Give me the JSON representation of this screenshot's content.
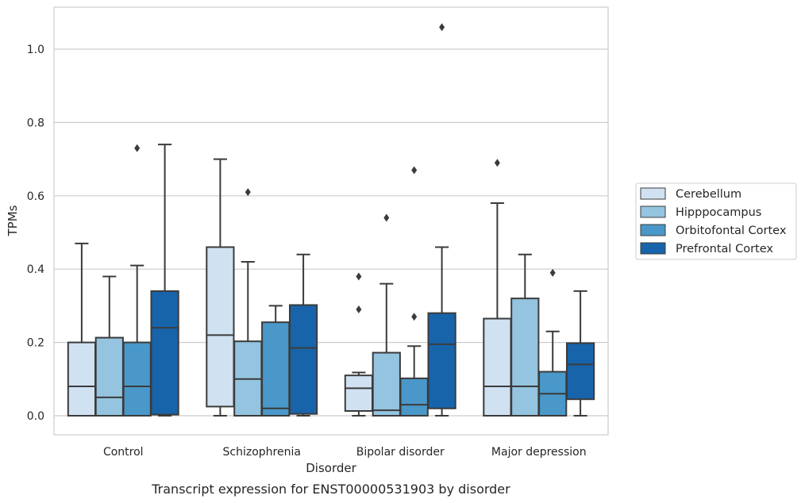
{
  "caption": "Transcript expression for ENST00000531903 by disorder",
  "chart_data": {
    "type": "boxplot",
    "xlabel": "Disorder",
    "ylabel": "TPMs",
    "ylim": [
      -0.05,
      1.115
    ],
    "yticks": [
      0.0,
      0.2,
      0.4,
      0.6,
      0.8,
      1.0
    ],
    "ytick_labels": [
      "0.0",
      "0.2",
      "0.4",
      "0.6",
      "0.8",
      "1.0"
    ],
    "grid": true,
    "legend_position": "right",
    "categories": [
      "Control",
      "Schizophrenia",
      "Bipolar disorder",
      "Major depression"
    ],
    "series": [
      {
        "name": "Cerebellum",
        "color": "#d0e1f2",
        "boxes": [
          {
            "whislo": 0.0,
            "q1": 0.0,
            "med": 0.08,
            "q3": 0.2,
            "whishi": 0.47,
            "fliers": []
          },
          {
            "whislo": 0.0,
            "q1": 0.025,
            "med": 0.22,
            "q3": 0.46,
            "whishi": 0.7,
            "fliers": []
          },
          {
            "whislo": 0.0,
            "q1": 0.013,
            "med": 0.075,
            "q3": 0.11,
            "whishi": 0.118,
            "fliers": [
              0.29,
              0.38
            ]
          },
          {
            "whislo": 0.0,
            "q1": 0.0,
            "med": 0.08,
            "q3": 0.265,
            "whishi": 0.58,
            "fliers": [
              0.69
            ]
          }
        ]
      },
      {
        "name": "Hipppocampus",
        "color": "#94c4df",
        "boxes": [
          {
            "whislo": 0.0,
            "q1": 0.0,
            "med": 0.05,
            "q3": 0.213,
            "whishi": 0.38,
            "fliers": []
          },
          {
            "whislo": 0.0,
            "q1": 0.0,
            "med": 0.1,
            "q3": 0.203,
            "whishi": 0.42,
            "fliers": [
              0.61
            ]
          },
          {
            "whislo": 0.0,
            "q1": 0.0,
            "med": 0.015,
            "q3": 0.172,
            "whishi": 0.36,
            "fliers": [
              0.54
            ]
          },
          {
            "whislo": 0.0,
            "q1": 0.0,
            "med": 0.08,
            "q3": 0.32,
            "whishi": 0.44,
            "fliers": []
          }
        ]
      },
      {
        "name": "Orbitofontal Cortex",
        "color": "#4a98c9",
        "boxes": [
          {
            "whislo": 0.0,
            "q1": 0.0,
            "med": 0.08,
            "q3": 0.2,
            "whishi": 0.41,
            "fliers": [
              0.73
            ]
          },
          {
            "whislo": 0.0,
            "q1": 0.0,
            "med": 0.02,
            "q3": 0.255,
            "whishi": 0.3,
            "fliers": []
          },
          {
            "whislo": 0.0,
            "q1": 0.0,
            "med": 0.03,
            "q3": 0.102,
            "whishi": 0.19,
            "fliers": [
              0.27,
              0.67
            ]
          },
          {
            "whislo": 0.0,
            "q1": 0.0,
            "med": 0.06,
            "q3": 0.12,
            "whishi": 0.23,
            "fliers": [
              0.39
            ]
          }
        ]
      },
      {
        "name": "Prefrontal Cortex",
        "color": "#1764ab",
        "boxes": [
          {
            "whislo": 0.0,
            "q1": 0.003,
            "med": 0.24,
            "q3": 0.34,
            "whishi": 0.74,
            "fliers": []
          },
          {
            "whislo": 0.0,
            "q1": 0.005,
            "med": 0.185,
            "q3": 0.302,
            "whishi": 0.44,
            "fliers": []
          },
          {
            "whislo": 0.0,
            "q1": 0.02,
            "med": 0.195,
            "q3": 0.28,
            "whishi": 0.46,
            "fliers": [
              1.06
            ]
          },
          {
            "whislo": 0.0,
            "q1": 0.045,
            "med": 0.14,
            "q3": 0.198,
            "whishi": 0.34,
            "fliers": []
          }
        ]
      }
    ]
  }
}
